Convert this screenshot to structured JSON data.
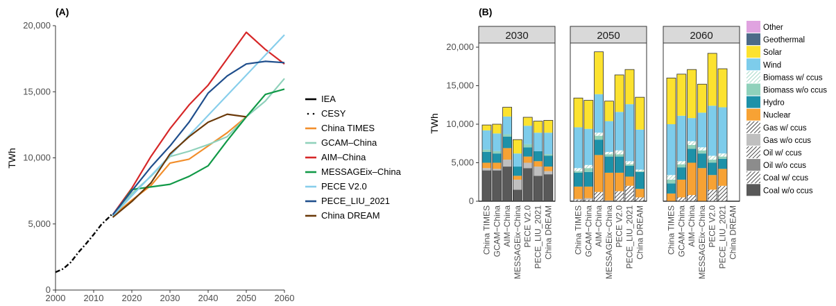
{
  "chart_data": [
    {
      "type": "line",
      "panel_label": "(A)",
      "ylabel": "TWh",
      "xlim": [
        2000,
        2060
      ],
      "ylim": [
        0,
        20000
      ],
      "xticks": [
        2000,
        2010,
        2020,
        2030,
        2040,
        2050,
        2060
      ],
      "yticks": [
        0,
        5000,
        10000,
        15000,
        20000
      ],
      "ytick_labels": [
        "0",
        "5,000",
        "10,000",
        "15,000",
        "20,000"
      ],
      "grid": false,
      "legend_position": "right",
      "series": [
        {
          "name": "IEA",
          "color": "#000000",
          "style": "solid",
          "x": [],
          "y": []
        },
        {
          "name": "CESY",
          "color": "#000000",
          "style": "dashdot",
          "x": [
            2000,
            2002,
            2004,
            2006,
            2008,
            2010,
            2012,
            2014,
            2015
          ],
          "y": [
            1350,
            1600,
            2100,
            2850,
            3500,
            4200,
            4950,
            5500,
            5800
          ]
        },
        {
          "name": "China TIMES",
          "color": "#F28E2B",
          "style": "solid",
          "x": [
            2015,
            2020,
            2025,
            2030,
            2035,
            2040,
            2045,
            2050
          ],
          "y": [
            5600,
            6800,
            7900,
            9600,
            9900,
            10900,
            11900,
            13100
          ]
        },
        {
          "name": "GCAM–China",
          "color": "#8FD1BB",
          "style": "solid",
          "x": [
            2015,
            2020,
            2025,
            2030,
            2035,
            2040,
            2045,
            2050,
            2055,
            2060
          ],
          "y": [
            5600,
            7300,
            8600,
            10100,
            10500,
            11000,
            11600,
            13100,
            14300,
            16000
          ]
        },
        {
          "name": "AIM–China",
          "color": "#D62728",
          "style": "solid",
          "x": [
            2015,
            2020,
            2025,
            2030,
            2035,
            2040,
            2045,
            2050,
            2055,
            2060
          ],
          "y": [
            5700,
            7700,
            10100,
            12200,
            14000,
            15500,
            17500,
            19500,
            18200,
            17100
          ]
        },
        {
          "name": "MESSAGEix–China",
          "color": "#119947",
          "style": "solid",
          "x": [
            2015,
            2020,
            2025,
            2030,
            2035,
            2040,
            2045,
            2050,
            2055,
            2060
          ],
          "y": [
            5600,
            7600,
            7800,
            8000,
            8600,
            9400,
            11300,
            13100,
            14800,
            15200
          ]
        },
        {
          "name": "PECE V2.0",
          "color": "#87CEEB",
          "style": "solid",
          "x": [
            2015,
            2060
          ],
          "y": [
            5600,
            19300
          ]
        },
        {
          "name": "PECE_LIU_2021",
          "color": "#1F4E8C",
          "style": "solid",
          "x": [
            2015,
            2020,
            2025,
            2030,
            2035,
            2040,
            2045,
            2050,
            2055,
            2060
          ],
          "y": [
            5700,
            7500,
            9300,
            10900,
            12700,
            14900,
            16200,
            17100,
            17300,
            17200
          ]
        },
        {
          "name": "China DREAM",
          "color": "#6B3A0A",
          "style": "solid",
          "x": [
            2015,
            2020,
            2025,
            2030,
            2035,
            2040,
            2045,
            2050
          ],
          "y": [
            5500,
            6700,
            8100,
            10300,
            11600,
            12700,
            13300,
            13100
          ]
        }
      ]
    },
    {
      "type": "bar",
      "stacked": true,
      "panel_label": "(B)",
      "ylabel": "TWh",
      "ylim": [
        0,
        20000
      ],
      "yticks": [
        0,
        5000,
        10000,
        15000,
        20000
      ],
      "ytick_labels": [
        "0",
        "5,000",
        "10,000",
        "15,000",
        "20,000"
      ],
      "legend_position": "right",
      "categories": [
        "China TIMES",
        "GCAM−China",
        "AIM−China",
        "MESSAGEix−China",
        "PECE V2.0",
        "PECE_LIU_2021",
        "China DREAM"
      ],
      "components": [
        {
          "name": "Coal w/o ccus",
          "color": "#595959",
          "hatch": false
        },
        {
          "name": "Coal w/ ccus",
          "color": "#595959",
          "hatch": true
        },
        {
          "name": "Oil w/o ccus",
          "color": "#8C8C8C",
          "hatch": false
        },
        {
          "name": "Oil w/ ccus",
          "color": "#8C8C8C",
          "hatch": true
        },
        {
          "name": "Gas w/o ccus",
          "color": "#BFBFBF",
          "hatch": false
        },
        {
          "name": "Gas w/ ccus",
          "color": "#BFBFBF",
          "hatch": true
        },
        {
          "name": "Nuclear",
          "color": "#F7A234",
          "hatch": false
        },
        {
          "name": "Hydro",
          "color": "#1D91A8",
          "hatch": false
        },
        {
          "name": "Biomass w/o ccus",
          "color": "#8FD1BB",
          "hatch": false
        },
        {
          "name": "Biomass w/ ccus",
          "color": "#8FD1BB",
          "hatch": true
        },
        {
          "name": "Wind",
          "color": "#7DCCEB",
          "hatch": false
        },
        {
          "name": "Solar",
          "color": "#FCE22F",
          "hatch": false
        },
        {
          "name": "Geothermal",
          "color": "#4C6A88",
          "hatch": false
        },
        {
          "name": "Other",
          "color": "#E0A3E0",
          "hatch": false
        }
      ],
      "legend_order": [
        "Other",
        "Geothermal",
        "Solar",
        "Wind",
        "Biomass w/ ccus",
        "Biomass w/o ccus",
        "Hydro",
        "Nuclear",
        "Gas w/ ccus",
        "Gas w/o ccus",
        "Oil w/ ccus",
        "Oil w/o ccus",
        "Coal w/ ccus",
        "Coal w/o ccus"
      ],
      "facets": [
        {
          "year": "2030",
          "bars": [
            {
              "Coal w/o ccus": 4000,
              "Gas w/o ccus": 300,
              "Nuclear": 700,
              "Hydro": 1400,
              "Biomass w/o ccus": 300,
              "Wind": 2500,
              "Solar": 700
            },
            {
              "Coal w/o ccus": 4000,
              "Gas w/o ccus": 200,
              "Nuclear": 800,
              "Hydro": 1200,
              "Biomass w/o ccus": 300,
              "Wind": 2300,
              "Solar": 1200
            },
            {
              "Coal w/o ccus": 4500,
              "Gas w/o ccus": 900,
              "Nuclear": 1500,
              "Hydro": 1500,
              "Biomass w/o ccus": 300,
              "Wind": 2300,
              "Solar": 1200
            },
            {
              "Coal w/o ccus": 1500,
              "Gas w/o ccus": 1300,
              "Nuclear": 500,
              "Hydro": 1200,
              "Wind": 1700,
              "Solar": 1800
            },
            {
              "Coal w/o ccus": 4300,
              "Gas w/o ccus": 700,
              "Nuclear": 800,
              "Hydro": 1200,
              "Biomass w/o ccus": 400,
              "Wind": 2400,
              "Solar": 1100
            },
            {
              "Coal w/o ccus": 3300,
              "Gas w/o ccus": 1200,
              "Nuclear": 700,
              "Hydro": 1300,
              "Wind": 2400,
              "Solar": 1500
            },
            {
              "Coal w/o ccus": 3500,
              "Gas w/o ccus": 400,
              "Nuclear": 600,
              "Hydro": 1400,
              "Biomass w/o ccus": 200,
              "Wind": 2800,
              "Solar": 1600
            }
          ]
        },
        {
          "year": "2050",
          "bars": [
            {
              "Coal w/ ccus": 200,
              "Gas w/o ccus": 100,
              "Nuclear": 1600,
              "Hydro": 1800,
              "Biomass w/ ccus": 400,
              "Biomass w/o ccus": 200,
              "Wind": 5300,
              "Solar": 3800
            },
            {
              "Coal w/ ccus": 200,
              "Gas w/o ccus": 200,
              "Nuclear": 1500,
              "Hydro": 1900,
              "Biomass w/ ccus": 400,
              "Biomass w/o ccus": 500,
              "Wind": 4700,
              "Solar": 3700
            },
            {
              "Coal w/ ccus": 700,
              "Gas w/ ccus": 500,
              "Nuclear": 4800,
              "Hydro": 2000,
              "Biomass w/ ccus": 400,
              "Biomass w/o ccus": 500,
              "Wind": 5000,
              "Solar": 5500
            },
            {
              "Gas w/o ccus": 100,
              "Nuclear": 3600,
              "Hydro": 2100,
              "Biomass w/ ccus": 300,
              "Biomass w/o ccus": 300,
              "Wind": 4000,
              "Solar": 2600
            },
            {
              "Coal w/ ccus": 700,
              "Gas w/ ccus": 600,
              "Nuclear": 2400,
              "Hydro": 2100,
              "Biomass w/ ccus": 500,
              "Biomass w/o ccus": 300,
              "Wind": 5000,
              "Solar": 4800
            },
            {
              "Coal w/ ccus": 1200,
              "Gas w/ ccus": 800,
              "Nuclear": 1200,
              "Hydro": 1400,
              "Biomass w/ ccus": 400,
              "Biomass w/o ccus": 200,
              "Wind": 7400,
              "Solar": 4500
            },
            {
              "Coal w/ ccus": 400,
              "Gas w/ ccus": 100,
              "Nuclear": 1100,
              "Hydro": 2200,
              "Biomass w/ ccus": 200,
              "Biomass w/o ccus": 100,
              "Wind": 5200,
              "Solar": 4200
            }
          ]
        },
        {
          "year": "2060",
          "bars": [
            {
              "Nuclear": 1000,
              "Hydro": 1300,
              "Biomass w/ ccus": 600,
              "Biomass w/o ccus": 500,
              "Wind": 6600,
              "Solar": 6000
            },
            {
              "Coal w/ ccus": 300,
              "Gas w/ ccus": 200,
              "Nuclear": 2300,
              "Hydro": 1600,
              "Biomass w/ ccus": 400,
              "Biomass w/o ccus": 400,
              "Wind": 5900,
              "Solar": 5400
            },
            {
              "Coal w/ ccus": 500,
              "Gas w/ ccus": 300,
              "Nuclear": 4200,
              "Hydro": 1800,
              "Biomass w/ ccus": 500,
              "Biomass w/o ccus": 500,
              "Wind": 3000,
              "Solar": 6300
            },
            {
              "Nuclear": 4300,
              "Hydro": 1900,
              "Biomass w/ ccus": 400,
              "Biomass w/o ccus": 400,
              "Wind": 4500,
              "Solar": 3700
            },
            {
              "Coal w/ ccus": 800,
              "Gas w/ ccus": 700,
              "Nuclear": 1900,
              "Hydro": 1600,
              "Biomass w/ ccus": 500,
              "Biomass w/o ccus": 400,
              "Wind": 6500,
              "Solar": 6800
            },
            {
              "Coal w/ ccus": 1200,
              "Gas w/ ccus": 800,
              "Nuclear": 2200,
              "Hydro": 1300,
              "Biomass w/ ccus": 400,
              "Biomass w/o ccus": 300,
              "Wind": 6000,
              "Solar": 5000
            }
          ]
        }
      ]
    }
  ]
}
